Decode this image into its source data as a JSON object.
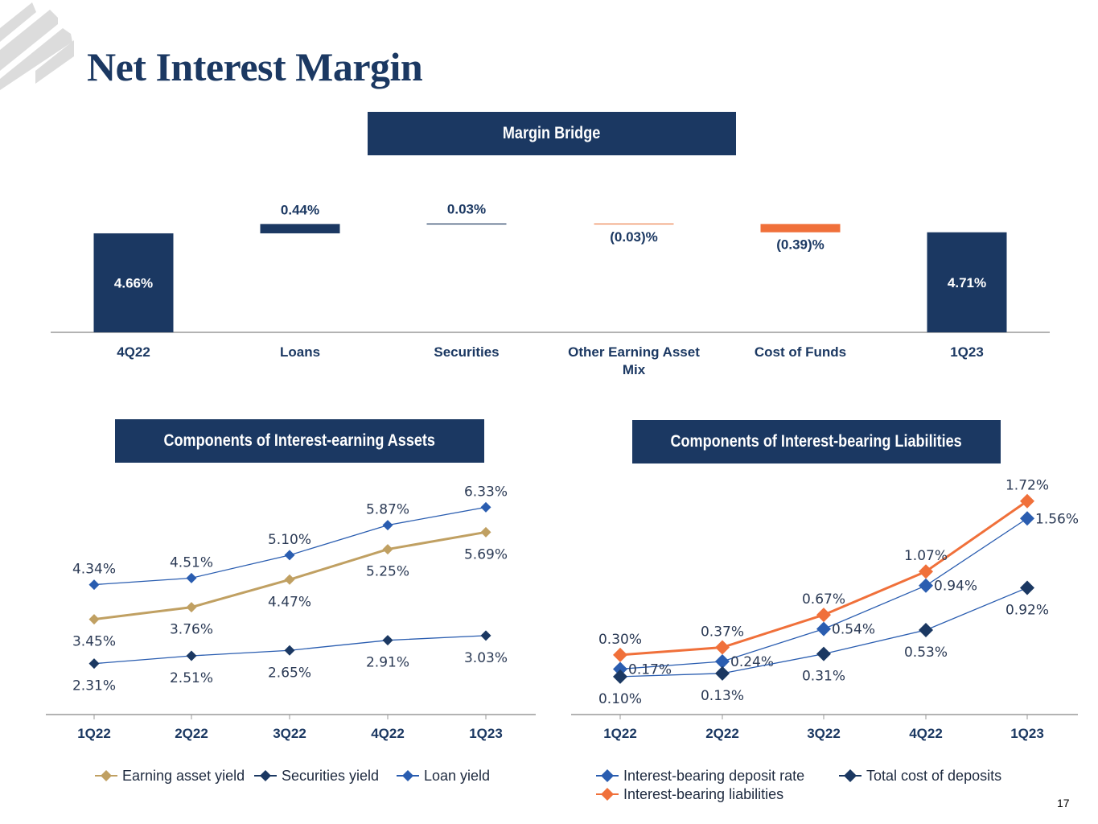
{
  "page": {
    "title": "Net Interest Margin",
    "page_number": "17",
    "logo_icon": "striped-logo-icon"
  },
  "colors": {
    "navy": "#1b3862",
    "blue": "#2a5db0",
    "gold": "#c0a062",
    "orange": "#f0703a",
    "light_orange": "#f09a70",
    "slate": "#4b6280",
    "axis": "#9a9a9a"
  },
  "sections": {
    "bridge": "Margin Bridge",
    "assets": "Components of Interest-earning Assets",
    "liabilities": "Components of Interest-bearing Liabilities"
  },
  "chart_data": [
    {
      "type": "bar",
      "subtype": "waterfall",
      "title": "Margin Bridge",
      "categories": [
        "4Q22",
        "Loans",
        "Securities",
        "Other Earning Asset Mix",
        "Cost of Funds",
        "1Q23"
      ],
      "category_lines": [
        [
          "4Q22"
        ],
        [
          "Loans"
        ],
        [
          "Securities"
        ],
        [
          "Other Earning Asset",
          "Mix"
        ],
        [
          "Cost of Funds"
        ],
        [
          "1Q23"
        ]
      ],
      "values": [
        4.66,
        0.44,
        0.03,
        -0.03,
        -0.39,
        4.71
      ],
      "kinds": [
        "total",
        "delta",
        "delta",
        "delta",
        "delta",
        "total"
      ],
      "labels": [
        "4.66%",
        "0.44%",
        "0.03%",
        "(0.03)%",
        "(0.39)%",
        "4.71%"
      ],
      "bar_colors": [
        "#1b3862",
        "#1b3862",
        "#4b6280",
        "#f09a70",
        "#f0703a",
        "#1b3862"
      ],
      "ylim": [
        0,
        5
      ],
      "unit": "%",
      "xlabel": "",
      "ylabel": "",
      "grid": false,
      "legend": "none"
    },
    {
      "type": "line",
      "title": "Components of Interest-earning Assets",
      "categories": [
        "1Q22",
        "2Q22",
        "3Q22",
        "4Q22",
        "1Q23"
      ],
      "ylim": [
        1.0,
        7.0
      ],
      "grid": false,
      "legend": "bottom",
      "series": [
        {
          "name": "Earning asset yield",
          "values": [
            3.45,
            3.76,
            4.47,
            5.25,
            5.69
          ],
          "labels": [
            "3.45%",
            "3.76%",
            "4.47%",
            "5.25%",
            "5.69%"
          ],
          "label_pos": "below",
          "line_color": "#c0a062",
          "marker_color": "#c0a062",
          "thick": true
        },
        {
          "name": "Securities yield",
          "values": [
            2.31,
            2.51,
            2.65,
            2.91,
            3.03
          ],
          "labels": [
            "2.31%",
            "2.51%",
            "2.65%",
            "2.91%",
            "3.03%"
          ],
          "label_pos": "below",
          "line_color": "#2a5db0",
          "marker_color": "#1b3862",
          "thick": false
        },
        {
          "name": "Loan yield",
          "values": [
            4.34,
            4.51,
            5.1,
            5.87,
            6.33
          ],
          "labels": [
            "4.34%",
            "4.51%",
            "5.10%",
            "5.87%",
            "6.33%"
          ],
          "label_pos": "above",
          "line_color": "#2a5db0",
          "marker_color": "#2a5db0",
          "thick": false
        }
      ]
    },
    {
      "type": "line",
      "title": "Components of Interest-bearing Liabilities",
      "categories": [
        "1Q22",
        "2Q22",
        "3Q22",
        "4Q22",
        "1Q23"
      ],
      "ylim": [
        -0.25,
        2.0
      ],
      "grid": false,
      "legend": "bottom",
      "series": [
        {
          "name": "Interest-bearing deposit rate",
          "values": [
            0.17,
            0.24,
            0.54,
            0.94,
            1.56
          ],
          "labels": [
            "0.17%",
            "0.24%",
            "0.54%",
            "0.94%",
            "1.56%"
          ],
          "label_pos": "right",
          "line_color": "#2a5db0",
          "marker_color": "#2a5db0",
          "thick": false
        },
        {
          "name": "Total cost of deposits",
          "values": [
            0.1,
            0.13,
            0.31,
            0.53,
            0.92
          ],
          "labels": [
            "0.10%",
            "0.13%",
            "0.31%",
            "0.53%",
            "0.92%"
          ],
          "label_pos": "below",
          "line_color": "#2a5db0",
          "marker_color": "#1b3862",
          "thick": false
        },
        {
          "name": "Interest-bearing liabilities",
          "values": [
            0.3,
            0.37,
            0.67,
            1.07,
            1.72
          ],
          "labels": [
            "0.30%",
            "0.37%",
            "0.67%",
            "1.07%",
            "1.72%"
          ],
          "label_pos": "above",
          "line_color": "#f0703a",
          "marker_color": "#f0703a",
          "thick": true
        }
      ]
    }
  ]
}
